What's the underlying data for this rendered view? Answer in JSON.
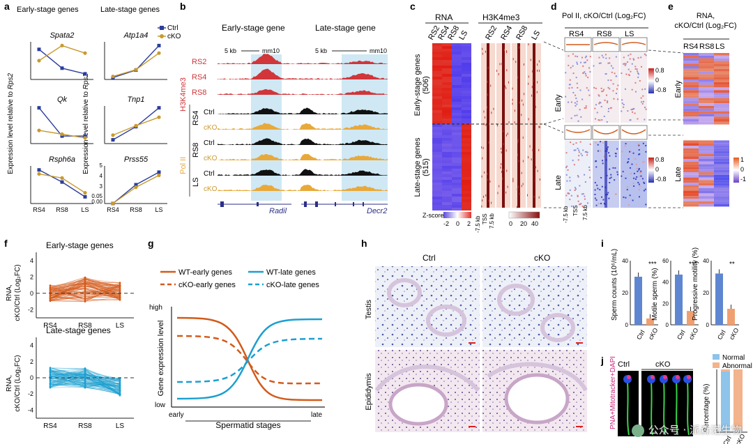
{
  "panels": {
    "a": {
      "letter": "a",
      "early_title": "Early-stage genes",
      "late_title": "Late-stage genes",
      "ylabel_pre": "Expression level relative to ",
      "ylabel_gene": "Rps2",
      "genes_left": [
        "Spata2",
        "Qk",
        "Rsph6a"
      ],
      "genes_right": [
        "Atp1a4",
        "Tnp1",
        "Prss55"
      ],
      "legend": [
        "Ctrl",
        "cKO"
      ],
      "xticks": [
        "RS4",
        "RS8",
        "LS"
      ],
      "yticks_r3": [
        "5",
        "4",
        "3",
        "0.05",
        "0.00"
      ]
    },
    "b": {
      "letter": "b",
      "early_title": "Early-stage gene",
      "late_title": "Late-stage gene",
      "scale": "5 kb",
      "chr": "mm10",
      "h3_tracks": [
        "RS2",
        "RS4",
        "RS8"
      ],
      "h3_label": "H3K4me3",
      "pol_groups": [
        "RS4",
        "RS8",
        "LS"
      ],
      "pol_label": "Pol II",
      "conds": [
        "Ctrl",
        "cKO"
      ],
      "gene_left": "Radil",
      "gene_right": "Decr2"
    },
    "c": {
      "letter": "c",
      "rna_title": "RNA",
      "h3_title": "H3K4me3",
      "cols": [
        "RS2",
        "RS4",
        "RS8",
        "LS"
      ],
      "early_label": "Early-stage genes",
      "early_n": "(506)",
      "late_label": "Late-stage genes",
      "late_n": "(515)",
      "zscore_label": "Z-score",
      "zticks": [
        "-2",
        "0",
        "2"
      ],
      "h3_scale": [
        "0",
        "20",
        "40"
      ],
      "axis": [
        "-7.5 kb",
        "TSS",
        "7.5 kb"
      ]
    },
    "d": {
      "letter": "d",
      "title": "Pol II, cKO/Ctrl (Log₂FC)",
      "cols": [
        "RS4",
        "RS8",
        "LS"
      ],
      "rows": [
        "Early",
        "Late"
      ],
      "scale": [
        "0.8",
        "0",
        "-0.8"
      ],
      "axis": [
        "-7.5 kb",
        "TSS",
        "7.5 kb"
      ]
    },
    "e": {
      "letter": "e",
      "title1": "RNA,",
      "title2": "cKO/Ctrl (Log₂FC)",
      "cols": [
        "RS4",
        "RS8",
        "LS"
      ],
      "rows": [
        "Early",
        "Late"
      ],
      "scale": [
        "1",
        "0",
        "-1"
      ]
    },
    "f": {
      "letter": "f",
      "early_title": "Early-stage genes",
      "late_title": "Late-stage genes",
      "ylabel1": "RNA,",
      "ylabel2": "cKO/Ctrl (Log₂FC)",
      "xticks": [
        "RS4",
        "RS8",
        "LS"
      ],
      "yticks_top": [
        "4",
        "2",
        "0",
        "-2"
      ],
      "yticks_bot": [
        "4",
        "2",
        "0",
        "-2",
        "-4"
      ]
    },
    "g": {
      "letter": "g",
      "legend": [
        "WT-early genes",
        "cKO-early genes",
        "WT-late genes",
        "cKO-late genes"
      ],
      "ylabel": "Gene expression level",
      "xlabel": "Spermatid stages",
      "high": "high",
      "low": "low",
      "early": "early",
      "late": "late"
    },
    "h": {
      "letter": "h",
      "cols": [
        "Ctrl",
        "cKO"
      ],
      "rows": [
        "Testis",
        "Epididymis"
      ]
    },
    "i": {
      "letter": "i",
      "ylabels": [
        "Sperm counts (10⁶/mL)",
        "Motile sperm (%)",
        "Progressive motility (%)"
      ],
      "sig": [
        "***",
        "***",
        "**"
      ],
      "xticks": [
        "Ctrl",
        "cKO"
      ],
      "y1": [
        "40",
        "20",
        "0"
      ],
      "y2": [
        "60",
        "40",
        "20",
        "0"
      ],
      "y3": [
        "40",
        "20",
        "0"
      ]
    },
    "j": {
      "letter": "j",
      "stain": "PNA+Mitotracker+DAPI",
      "cols": [
        "Ctrl",
        "cKO"
      ],
      "legend": [
        "Normal",
        "Abnormal"
      ],
      "ylabel": "Percentage (%)",
      "xticks": [
        "Ctrl",
        "cKO"
      ]
    }
  },
  "colors": {
    "ctrl": "#2b3e9b",
    "cko": "#c89a2e",
    "red": "#d0363a",
    "gold": "#e8a93a",
    "orange": "#d35a1a",
    "blue": "#1b9fd0",
    "lightblue": "#8ec3ea",
    "peach": "#f2b38d"
  },
  "chart_data": [
    {
      "panel": "a-Spata2",
      "type": "line",
      "x": [
        "RS4",
        "RS8",
        "LS"
      ],
      "series": [
        {
          "name": "Ctrl",
          "values": [
            0.032,
            0.012,
            0.006
          ]
        },
        {
          "name": "cKO",
          "values": [
            0.02,
            0.036,
            0.028
          ]
        }
      ]
    },
    {
      "panel": "a-Qk",
      "type": "line",
      "x": [
        "RS4",
        "RS8",
        "LS"
      ],
      "series": [
        {
          "name": "Ctrl",
          "values": [
            0.19,
            0.04,
            0.04
          ]
        },
        {
          "name": "cKO",
          "values": [
            0.07,
            0.05,
            0.03
          ]
        }
      ]
    },
    {
      "panel": "a-Rsph6a",
      "type": "line",
      "x": [
        "RS4",
        "RS8",
        "LS"
      ],
      "series": [
        {
          "name": "Ctrl",
          "values": [
            1.25,
            0.8,
            0.25
          ]
        },
        {
          "name": "cKO",
          "values": [
            1.1,
            0.95,
            0.4
          ]
        }
      ]
    },
    {
      "panel": "a-Atp1a4",
      "type": "line",
      "x": [
        "RS4",
        "RS8",
        "LS"
      ],
      "series": [
        {
          "name": "Ctrl",
          "values": [
            0.5,
            2.5,
            9.0
          ]
        },
        {
          "name": "cKO",
          "values": [
            0.8,
            2.6,
            7.0
          ]
        }
      ]
    },
    {
      "panel": "a-Tnp1",
      "type": "line",
      "x": [
        "RS4",
        "RS8",
        "LS"
      ],
      "series": [
        {
          "name": "Ctrl",
          "values": [
            40,
            180,
            380
          ]
        },
        {
          "name": "cKO",
          "values": [
            90,
            190,
            280
          ]
        }
      ]
    },
    {
      "panel": "a-Prss55",
      "type": "line",
      "x": [
        "RS4",
        "RS8",
        "LS"
      ],
      "series": [
        {
          "name": "Ctrl",
          "values": [
            0.01,
            3.0,
            5.0
          ]
        },
        {
          "name": "cKO",
          "values": [
            0.02,
            2.6,
            4.5
          ]
        }
      ]
    },
    {
      "panel": "i-counts",
      "type": "bar",
      "categories": [
        "Ctrl",
        "cKO"
      ],
      "values": [
        30,
        4
      ],
      "ylim": [
        0,
        40
      ]
    },
    {
      "panel": "i-motile",
      "type": "bar",
      "categories": [
        "Ctrl",
        "cKO"
      ],
      "values": [
        47,
        13
      ],
      "ylim": [
        0,
        60
      ]
    },
    {
      "panel": "i-progressive",
      "type": "bar",
      "categories": [
        "Ctrl",
        "cKO"
      ],
      "values": [
        32,
        10
      ],
      "ylim": [
        0,
        40
      ]
    },
    {
      "panel": "j",
      "type": "bar",
      "categories": [
        "Ctrl",
        "cKO"
      ],
      "series": [
        {
          "name": "Normal",
          "values": [
            97,
            3
          ]
        },
        {
          "name": "Abnormal",
          "values": [
            3,
            97
          ]
        }
      ],
      "ylim": [
        0,
        100
      ]
    }
  ]
}
